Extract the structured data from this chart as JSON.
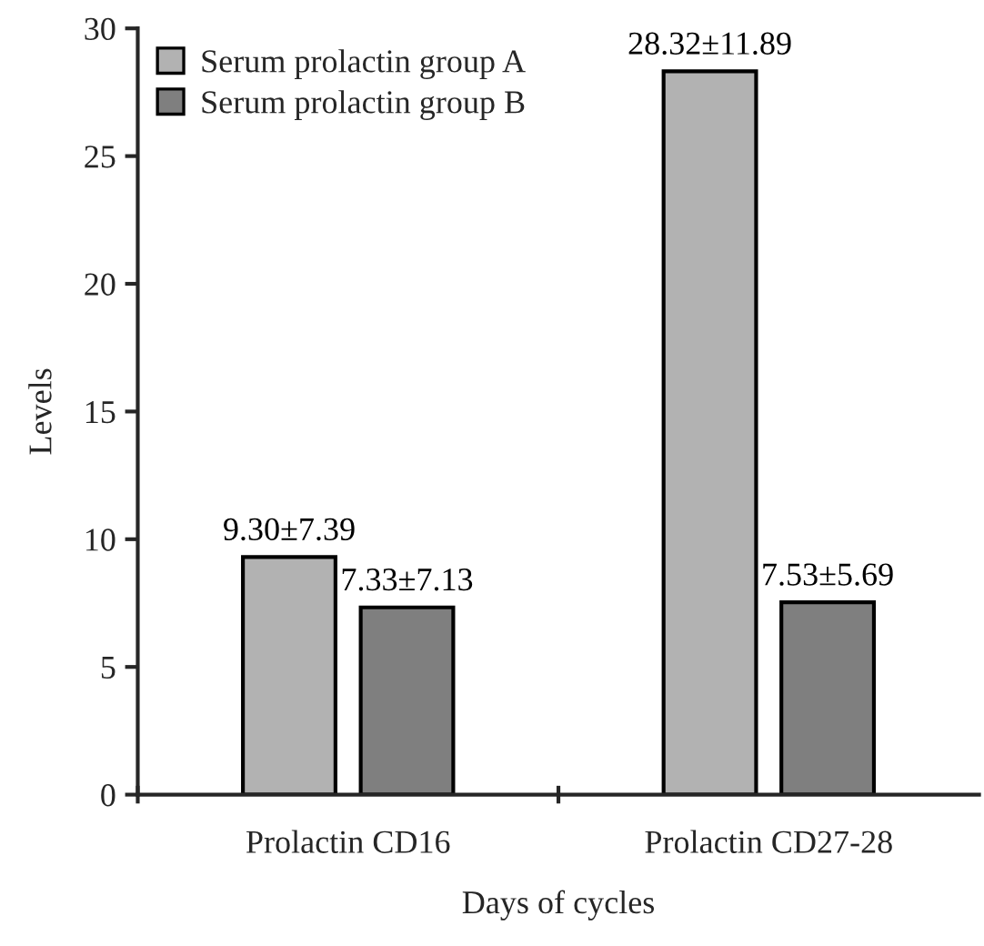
{
  "chart_data": {
    "type": "bar",
    "xlabel": "Days of cycles",
    "ylabel": "Levels",
    "categories": [
      "Prolactin CD16",
      "Prolactin CD27-28"
    ],
    "series": [
      {
        "name": "Serum prolactin group A",
        "color": "#b2b2b2",
        "values": [
          9.3,
          28.32
        ],
        "value_labels": [
          "9.30±7.39",
          "28.32±11.89"
        ]
      },
      {
        "name": "Serum prolactin group B",
        "color": "#7f7f7f",
        "values": [
          7.33,
          7.53
        ],
        "value_labels": [
          "7.33±7.13",
          "7.53±5.69"
        ]
      }
    ],
    "ylim": [
      0,
      30
    ],
    "yticks": [
      0,
      5,
      10,
      15,
      20,
      25,
      30
    ],
    "grid": false,
    "legend": "top left"
  }
}
